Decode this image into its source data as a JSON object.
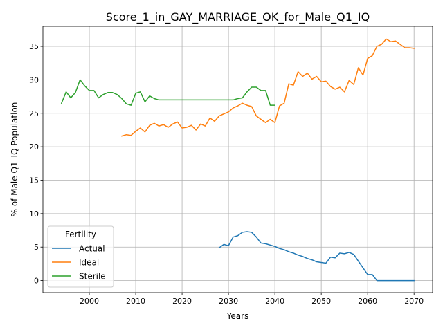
{
  "chart_data": {
    "type": "line",
    "title": "Score_1_in_GAY_MARRIAGE_OK_for_Male_Q1_IQ",
    "xlabel": "Years",
    "ylabel": "% of Male Q1_IQ Population",
    "xlim": [
      1990,
      2074
    ],
    "ylim": [
      -1.8,
      38
    ],
    "xticks": [
      2000,
      2010,
      2020,
      2030,
      2040,
      2050,
      2060,
      2070
    ],
    "yticks": [
      0,
      5,
      10,
      15,
      20,
      25,
      30,
      35
    ],
    "grid": true,
    "legend": {
      "title": "Fertility",
      "position": "lower-left"
    },
    "series": [
      {
        "name": "Actual",
        "color": "#1f77b4",
        "x": [
          2028,
          2029,
          2030,
          2031,
          2032,
          2033,
          2034,
          2035,
          2036,
          2037,
          2038,
          2039,
          2040,
          2041,
          2042,
          2043,
          2044,
          2045,
          2046,
          2047,
          2048,
          2049,
          2050,
          2051,
          2052,
          2053,
          2054,
          2055,
          2056,
          2057,
          2058,
          2059,
          2060,
          2061,
          2062,
          2063,
          2064,
          2065,
          2066,
          2067,
          2068,
          2069,
          2070
        ],
        "y": [
          4.9,
          5.4,
          5.2,
          6.5,
          6.7,
          7.2,
          7.3,
          7.2,
          6.5,
          5.6,
          5.5,
          5.3,
          5.1,
          4.8,
          4.6,
          4.3,
          4.1,
          3.8,
          3.6,
          3.3,
          3.1,
          2.8,
          2.7,
          2.6,
          3.5,
          3.4,
          4.1,
          4.0,
          4.2,
          3.9,
          2.9,
          1.9,
          0.9,
          0.9,
          0.0,
          0.0,
          0.0,
          0.0,
          0.0,
          0.0,
          0.0,
          0.0,
          0.0
        ]
      },
      {
        "name": "Ideal",
        "color": "#ff7f0e",
        "x": [
          2007,
          2008,
          2009,
          2010,
          2011,
          2012,
          2013,
          2014,
          2015,
          2016,
          2017,
          2018,
          2019,
          2020,
          2021,
          2022,
          2023,
          2024,
          2025,
          2026,
          2027,
          2028,
          2029,
          2030,
          2031,
          2032,
          2033,
          2034,
          2035,
          2036,
          2037,
          2038,
          2039,
          2040,
          2041,
          2042,
          2043,
          2044,
          2045,
          2046,
          2047,
          2048,
          2049,
          2050,
          2051,
          2052,
          2053,
          2054,
          2055,
          2056,
          2057,
          2058,
          2059,
          2060,
          2061,
          2062,
          2063,
          2064,
          2065,
          2066,
          2067,
          2068,
          2069,
          2070
        ],
        "y": [
          21.6,
          21.8,
          21.7,
          22.3,
          22.8,
          22.2,
          23.2,
          23.5,
          23.1,
          23.3,
          22.9,
          23.4,
          23.7,
          22.8,
          22.9,
          23.2,
          22.5,
          23.4,
          23.1,
          24.3,
          23.8,
          24.6,
          24.9,
          25.2,
          25.8,
          26.1,
          26.5,
          26.2,
          26.0,
          24.6,
          24.1,
          23.6,
          24.1,
          23.6,
          26.1,
          26.5,
          29.4,
          29.2,
          31.2,
          30.5,
          31.0,
          30.1,
          30.5,
          29.7,
          29.8,
          29.0,
          28.6,
          28.9,
          28.2,
          29.9,
          29.3,
          31.8,
          30.7,
          33.2,
          33.6,
          35.0,
          35.3,
          36.1,
          35.7,
          35.8,
          35.3,
          34.8,
          34.8,
          34.7
        ]
      },
      {
        "name": "Sterile",
        "color": "#2ca02c",
        "x": [
          1994,
          1995,
          1996,
          1997,
          1998,
          1999,
          2000,
          2001,
          2002,
          2003,
          2004,
          2005,
          2006,
          2007,
          2008,
          2009,
          2010,
          2011,
          2012,
          2013,
          2014,
          2015,
          2016,
          2017,
          2018,
          2019,
          2020,
          2021,
          2022,
          2023,
          2024,
          2025,
          2026,
          2027,
          2028,
          2029,
          2030,
          2031,
          2032,
          2033,
          2034,
          2035,
          2036,
          2037,
          2038,
          2039,
          2040
        ],
        "y": [
          26.5,
          28.2,
          27.3,
          28.1,
          30.0,
          29.1,
          28.4,
          28.4,
          27.3,
          27.8,
          28.1,
          28.1,
          27.8,
          27.2,
          26.4,
          26.2,
          28.0,
          28.2,
          26.7,
          27.6,
          27.2,
          27.0,
          27.0,
          27.0,
          27.0,
          27.0,
          27.0,
          27.0,
          27.0,
          27.0,
          27.0,
          27.0,
          27.0,
          27.0,
          27.0,
          27.0,
          27.0,
          27.0,
          27.2,
          27.3,
          28.2,
          28.9,
          28.9,
          28.4,
          28.4,
          26.2,
          26.2
        ]
      }
    ]
  }
}
